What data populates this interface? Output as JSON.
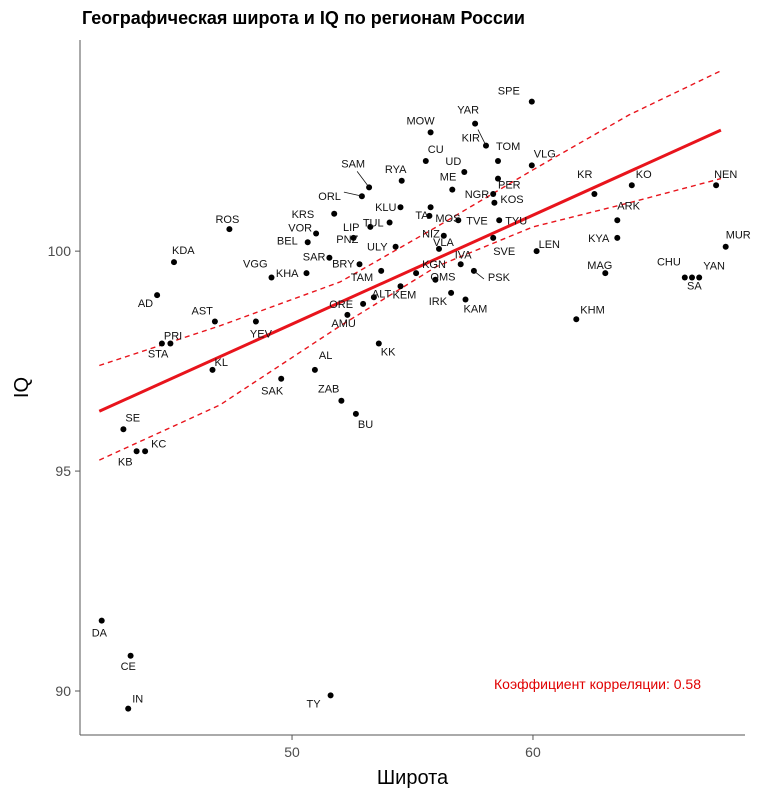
{
  "chart_data": {
    "type": "scatter",
    "title": "Географическая широта и IQ по регионам России",
    "xlabel": "Широта",
    "ylabel": "IQ",
    "xlim": [
      41.2,
      68.8
    ],
    "ylim": [
      89.0,
      104.8
    ],
    "xticks": [
      50,
      60
    ],
    "yticks": [
      90,
      95,
      100
    ],
    "grid": false,
    "annotation": "Коэффициент корреляции: 0.58",
    "colors": {
      "points": "#000000",
      "trend": "#e8141c",
      "ci": "#e8141c",
      "annotation": "#e00000"
    },
    "trend": {
      "x0": 42.0,
      "y0": 96.36,
      "x1": 67.8,
      "y1": 102.75
    },
    "ci_upper": [
      [
        42.0,
        97.4
      ],
      [
        47.0,
        98.3
      ],
      [
        52.0,
        99.3
      ],
      [
        56.0,
        100.55
      ],
      [
        60.0,
        101.85
      ],
      [
        64.0,
        103.1
      ],
      [
        67.8,
        104.1
      ]
    ],
    "ci_lower": [
      [
        42.0,
        95.25
      ],
      [
        47.0,
        96.5
      ],
      [
        52.0,
        98.3
      ],
      [
        56.0,
        99.65
      ],
      [
        60.0,
        100.55
      ],
      [
        64.0,
        101.1
      ],
      [
        67.8,
        101.65
      ]
    ],
    "points": [
      {
        "label": "SPE",
        "x": 59.95,
        "y": 103.4
      },
      {
        "label": "YAR",
        "x": 57.6,
        "y": 102.9
      },
      {
        "label": "KIR",
        "x": 58.05,
        "y": 102.4
      },
      {
        "label": "MOW",
        "x": 55.75,
        "y": 102.7
      },
      {
        "label": "TOM",
        "x": 58.55,
        "y": 102.05
      },
      {
        "label": "VLG",
        "x": 59.95,
        "y": 101.95
      },
      {
        "label": "CU",
        "x": 55.55,
        "y": 102.05
      },
      {
        "label": "UD",
        "x": 57.15,
        "y": 101.8
      },
      {
        "label": "PER",
        "x": 58.55,
        "y": 101.65
      },
      {
        "label": "RYA",
        "x": 54.55,
        "y": 101.6
      },
      {
        "label": "ME",
        "x": 56.65,
        "y": 101.4
      },
      {
        "label": "SAM",
        "x": 53.2,
        "y": 101.45
      },
      {
        "label": "NGR",
        "x": 58.35,
        "y": 101.3
      },
      {
        "label": "KOS",
        "x": 58.4,
        "y": 101.1
      },
      {
        "label": "KR",
        "x": 62.55,
        "y": 101.3
      },
      {
        "label": "KO",
        "x": 64.1,
        "y": 101.5
      },
      {
        "label": "NEN",
        "x": 67.6,
        "y": 101.5
      },
      {
        "label": "ORL",
        "x": 52.9,
        "y": 101.25
      },
      {
        "label": "KLU",
        "x": 54.5,
        "y": 101.0
      },
      {
        "label": "TA",
        "x": 55.75,
        "y": 101.0
      },
      {
        "label": "KRS",
        "x": 51.75,
        "y": 100.85
      },
      {
        "label": "MOS",
        "x": 55.7,
        "y": 100.8
      },
      {
        "label": "TVE",
        "x": 56.9,
        "y": 100.7
      },
      {
        "label": "TYU",
        "x": 58.6,
        "y": 100.7
      },
      {
        "label": "ARK",
        "x": 63.5,
        "y": 100.7
      },
      {
        "label": "VOR",
        "x": 51.0,
        "y": 100.4
      },
      {
        "label": "TUL",
        "x": 54.05,
        "y": 100.65
      },
      {
        "label": "PNZ",
        "x": 53.25,
        "y": 100.55
      },
      {
        "label": "ROS",
        "x": 47.4,
        "y": 100.5
      },
      {
        "label": "NIZ",
        "x": 56.3,
        "y": 100.35
      },
      {
        "label": "LIP",
        "x": 52.55,
        "y": 100.3
      },
      {
        "label": "BEL",
        "x": 50.65,
        "y": 100.2
      },
      {
        "label": "ULY",
        "x": 54.3,
        "y": 100.1
      },
      {
        "label": "VLA",
        "x": 56.1,
        "y": 100.05
      },
      {
        "label": "SVE",
        "x": 58.35,
        "y": 100.3
      },
      {
        "label": "LEN",
        "x": 60.15,
        "y": 100.0
      },
      {
        "label": "KYA",
        "x": 63.5,
        "y": 100.3
      },
      {
        "label": "MUR",
        "x": 68.0,
        "y": 100.1
      },
      {
        "label": "KDA",
        "x": 45.1,
        "y": 99.75
      },
      {
        "label": "VGG",
        "x": 49.15,
        "y": 99.4
      },
      {
        "label": "SAR",
        "x": 51.55,
        "y": 99.85
      },
      {
        "label": "KHA",
        "x": 50.6,
        "y": 99.5
      },
      {
        "label": "BRY",
        "x": 52.8,
        "y": 99.7
      },
      {
        "label": "TAM",
        "x": 53.7,
        "y": 99.55
      },
      {
        "label": "KGN",
        "x": 55.15,
        "y": 99.5
      },
      {
        "label": "IVA",
        "x": 57.0,
        "y": 99.7
      },
      {
        "label": "PSK",
        "x": 57.55,
        "y": 99.55
      },
      {
        "label": "OMS",
        "x": 55.95,
        "y": 99.35
      },
      {
        "label": "MAG",
        "x": 63.0,
        "y": 99.5
      },
      {
        "label": "CHU",
        "x": 66.3,
        "y": 99.4
      },
      {
        "label": "YAN",
        "x": 66.9,
        "y": 99.4
      },
      {
        "label": "SA",
        "x": 66.6,
        "y": 99.4
      },
      {
        "label": "KEM",
        "x": 54.5,
        "y": 99.2
      },
      {
        "label": "IRK",
        "x": 56.6,
        "y": 99.05
      },
      {
        "label": "KAM",
        "x": 57.2,
        "y": 98.9
      },
      {
        "label": "ALT",
        "x": 53.4,
        "y": 98.95
      },
      {
        "label": "ORE",
        "x": 52.95,
        "y": 98.8
      },
      {
        "label": "AD",
        "x": 44.4,
        "y": 99.0
      },
      {
        "label": "AST",
        "x": 46.8,
        "y": 98.4
      },
      {
        "label": "YEV",
        "x": 48.5,
        "y": 98.4
      },
      {
        "label": "AMU",
        "x": 52.3,
        "y": 98.55
      },
      {
        "label": "PRI",
        "x": 44.6,
        "y": 97.9
      },
      {
        "label": "STA",
        "x": 44.95,
        "y": 97.9
      },
      {
        "label": "KHM",
        "x": 61.8,
        "y": 98.45
      },
      {
        "label": "KL",
        "x": 46.7,
        "y": 97.3
      },
      {
        "label": "KK",
        "x": 53.6,
        "y": 97.9
      },
      {
        "label": "AL",
        "x": 50.95,
        "y": 97.3
      },
      {
        "label": "SAK",
        "x": 49.55,
        "y": 97.1
      },
      {
        "label": "ZAB",
        "x": 52.05,
        "y": 96.6
      },
      {
        "label": "BU",
        "x": 52.65,
        "y": 96.3
      },
      {
        "label": "SE",
        "x": 43.0,
        "y": 95.95
      },
      {
        "label": "KC",
        "x": 43.9,
        "y": 95.45
      },
      {
        "label": "KB",
        "x": 43.55,
        "y": 95.45
      },
      {
        "label": "DA",
        "x": 42.1,
        "y": 91.6
      },
      {
        "label": "CE",
        "x": 43.3,
        "y": 90.8
      },
      {
        "label": "IN",
        "x": 43.2,
        "y": 89.6
      },
      {
        "label": "TY",
        "x": 51.6,
        "y": 89.9
      }
    ]
  }
}
